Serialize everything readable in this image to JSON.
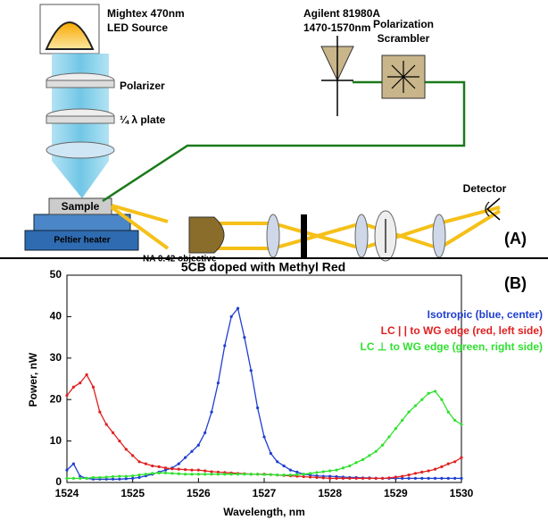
{
  "diagram": {
    "led_line1": "Mightex 470nm",
    "led_line2": "LED Source",
    "polarizer": "Polarizer",
    "plate": "¼ λ plate",
    "laser_line1": "Agilent 81980A",
    "laser_line2": "1470-1570nm",
    "scrambler_line1": "Polarization",
    "scrambler_line2": "Scrambler",
    "detector": "Detector",
    "sample": "Sample",
    "heater": "Peltier heater",
    "objective": "NA 0.42 objective",
    "panel": "(A)"
  },
  "chart_data": {
    "type": "line",
    "title": "5CB doped with Methyl Red",
    "panel": "(B)",
    "xlabel": "Wavelength, nm",
    "ylabel": "Power, nW",
    "xlim": [
      1524,
      1530
    ],
    "xticks": [
      1524,
      1525,
      1526,
      1527,
      1528,
      1529,
      1530
    ],
    "ylim": [
      0,
      50
    ],
    "yticks": [
      0,
      10,
      20,
      30,
      40,
      50
    ],
    "x": [
      1524,
      1524.1,
      1524.2,
      1524.3,
      1524.4,
      1524.5,
      1524.6,
      1524.7,
      1524.8,
      1524.9,
      1525,
      1525.1,
      1525.2,
      1525.3,
      1525.4,
      1525.5,
      1525.6,
      1525.7,
      1525.8,
      1525.9,
      1526,
      1526.1,
      1526.2,
      1526.3,
      1526.4,
      1526.5,
      1526.6,
      1526.7,
      1526.8,
      1526.9,
      1527,
      1527.1,
      1527.2,
      1527.3,
      1527.4,
      1527.5,
      1527.6,
      1527.7,
      1527.8,
      1527.9,
      1528,
      1528.1,
      1528.2,
      1528.3,
      1528.4,
      1528.5,
      1528.6,
      1528.7,
      1528.8,
      1528.9,
      1529,
      1529.1,
      1529.2,
      1529.3,
      1529.4,
      1529.5,
      1529.6,
      1529.7,
      1529.8,
      1529.9,
      1530
    ],
    "legend": "top-right",
    "series": [
      {
        "name": "Isotropic (blue, center)",
        "color": "#1f3fd0",
        "values": [
          3,
          4.5,
          1.5,
          1,
          0.8,
          0.8,
          0.8,
          0.8,
          0.8,
          0.9,
          1,
          1.2,
          1.6,
          2,
          2.5,
          3,
          3.5,
          4.5,
          6,
          7.5,
          9,
          12,
          17,
          24,
          33,
          40,
          42,
          35,
          27,
          18,
          11,
          7,
          5,
          4,
          3,
          2.5,
          2,
          1.8,
          1.6,
          1.5,
          1.5,
          1.4,
          1.3,
          1.2,
          1.2,
          1.1,
          1.1,
          1,
          1,
          1,
          1,
          1,
          1,
          1,
          1,
          1,
          1,
          1,
          1,
          1,
          1
        ]
      },
      {
        "name": "LC | | to WG edge (red, left side)",
        "color": "#e02020",
        "values": [
          21,
          23,
          24,
          26,
          23,
          17,
          14,
          12,
          10,
          8,
          6.5,
          5,
          4.5,
          4,
          3.8,
          3.5,
          3.3,
          3.2,
          3.1,
          3,
          3,
          2.8,
          2.6,
          2.5,
          2.4,
          2.3,
          2.2,
          2.1,
          2,
          2,
          2,
          1.9,
          1.8,
          1.7,
          1.6,
          1.5,
          1.4,
          1.3,
          1.2,
          1.1,
          1,
          1,
          1,
          1,
          1,
          1,
          1,
          1,
          1,
          1.1,
          1.3,
          1.5,
          1.8,
          2.2,
          2.5,
          2.8,
          3.2,
          3.8,
          4.5,
          5,
          6
        ]
      },
      {
        "name": "LC ⊥ to WG edge (green, right side)",
        "color": "#30e030",
        "values": [
          1,
          1,
          1,
          1,
          1.2,
          1.2,
          1.3,
          1.4,
          1.5,
          1.5,
          1.6,
          1.8,
          2,
          2.2,
          2.3,
          2.3,
          2.2,
          2.1,
          2,
          2,
          2,
          2,
          2,
          2,
          2,
          2,
          2,
          2,
          2,
          2,
          1.9,
          1.9,
          1.8,
          1.8,
          1.8,
          1.9,
          2,
          2.2,
          2.4,
          2.6,
          2.8,
          3,
          3.5,
          4,
          4.8,
          5.5,
          6.5,
          7.5,
          9,
          11,
          13,
          15,
          17,
          18.5,
          20,
          21.5,
          22,
          20,
          17,
          15,
          14
        ]
      }
    ]
  }
}
